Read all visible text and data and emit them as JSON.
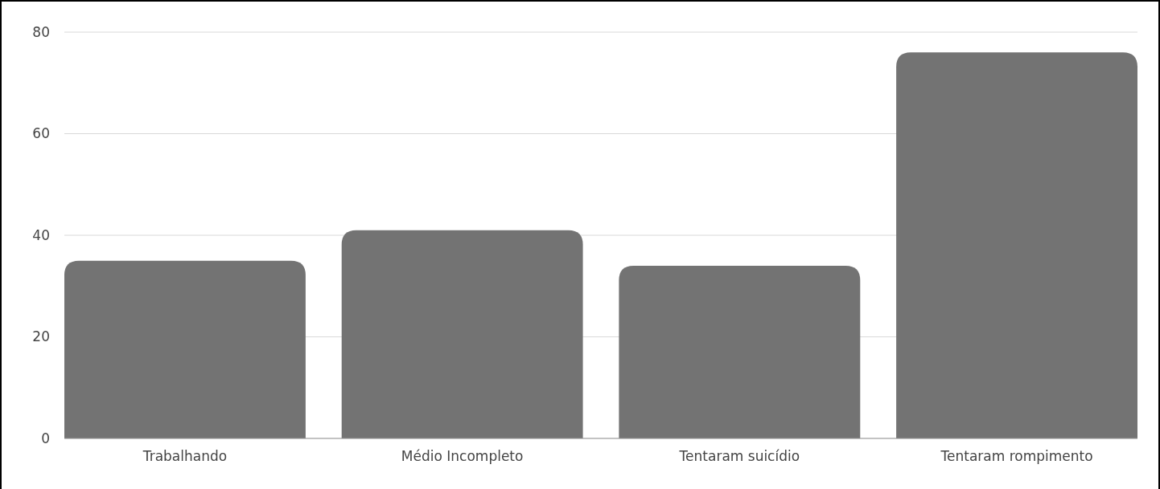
{
  "chart_data": {
    "type": "bar",
    "categories": [
      "Trabalhando",
      "Médio Incompleto",
      "Tentaram suicídio",
      "Tentaram rompimento"
    ],
    "values": [
      35,
      41,
      34,
      76
    ],
    "color": "#737373",
    "ylim": [
      0,
      80
    ],
    "yticks": [
      0,
      20,
      40,
      60,
      80
    ],
    "grid": "y"
  }
}
